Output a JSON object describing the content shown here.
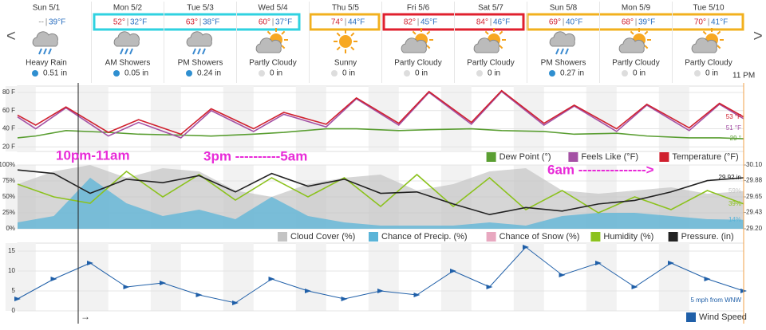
{
  "nav": {
    "prev": "<",
    "next": ">"
  },
  "forecast": {
    "days": [
      {
        "day": "Sun 5/1",
        "hi": "--",
        "lo": "39°F",
        "condition": "Heavy Rain",
        "precip": "0.51 in"
      },
      {
        "day": "Mon 5/2",
        "hi": "52°",
        "lo": "32°F",
        "condition": "AM Showers",
        "precip": "0.05 in"
      },
      {
        "day": "Tue 5/3",
        "hi": "63°",
        "lo": "38°F",
        "condition": "PM Showers",
        "precip": "0.24 in"
      },
      {
        "day": "Wed 5/4",
        "hi": "60°",
        "lo": "37°F",
        "condition": "Partly Cloudy",
        "precip": "0 in"
      },
      {
        "day": "Thu 5/5",
        "hi": "74°",
        "lo": "44°F",
        "condition": "Sunny",
        "precip": "0 in"
      },
      {
        "day": "Fri 5/6",
        "hi": "82°",
        "lo": "45°F",
        "condition": "Partly Cloudy",
        "precip": "0 in"
      },
      {
        "day": "Sat 5/7",
        "hi": "84°",
        "lo": "46°F",
        "condition": "Partly Cloudy",
        "precip": "0 in"
      },
      {
        "day": "Sun 5/8",
        "hi": "69°",
        "lo": "40°F",
        "condition": "PM Showers",
        "precip": "0.27 in"
      },
      {
        "day": "Mon 5/9",
        "hi": "68°",
        "lo": "39°F",
        "condition": "Partly Cloudy",
        "precip": "0 in"
      },
      {
        "day": "Tue 5/10",
        "hi": "70°",
        "lo": "41°F",
        "condition": "Partly Cloudy",
        "precip": "0 in"
      }
    ],
    "time_label": "11 PM",
    "now_arrow": "→",
    "annotations": [
      "10pm-11am",
      "3pm ----------5am",
      "6am --------------->"
    ]
  },
  "chart_data": [
    {
      "type": "line",
      "x": [
        0,
        6,
        16,
        30,
        40,
        54,
        64,
        78,
        88,
        102,
        112,
        126,
        136,
        150,
        160,
        174,
        184,
        198,
        208,
        222,
        232,
        240
      ],
      "ylim": [
        15,
        87
      ],
      "yticks": [
        {
          "value": 20,
          "label": "20 F"
        },
        {
          "value": 40,
          "label": "40 F"
        },
        {
          "value": 60,
          "label": "60 F"
        },
        {
          "value": 80,
          "label": "80 F"
        }
      ],
      "series": [
        {
          "name": "Dew Point (°)",
          "color": "#5a9e32",
          "end_label": "29 °",
          "values": [
            30,
            32,
            38,
            36,
            34,
            33,
            32,
            34,
            36,
            40,
            40,
            38,
            39,
            40,
            38,
            37,
            34,
            35,
            32,
            30,
            30,
            29
          ]
        },
        {
          "name": "Feels Like (°F)",
          "color": "#a450a4",
          "end_label": "51 °F",
          "values": [
            53,
            40,
            63,
            32,
            47,
            30,
            60,
            37,
            56,
            42,
            73,
            44,
            80,
            45,
            81,
            44,
            65,
            37,
            66,
            38,
            67,
            51
          ]
        },
        {
          "name": "Temperature (°F)",
          "color": "#d0202e",
          "end_label": "53 °F",
          "values": [
            55,
            44,
            64,
            36,
            50,
            34,
            62,
            40,
            58,
            45,
            74,
            46,
            81,
            47,
            82,
            46,
            66,
            40,
            67,
            41,
            68,
            53
          ]
        }
      ]
    },
    {
      "type": "line",
      "x": [
        0,
        12,
        24,
        36,
        48,
        60,
        72,
        84,
        96,
        108,
        120,
        132,
        144,
        156,
        168,
        180,
        192,
        204,
        216,
        228,
        240
      ],
      "ylim": [
        0,
        100
      ],
      "y2lim": [
        29.2,
        30.1
      ],
      "yticks": [
        {
          "value": 0,
          "label": "0%"
        },
        {
          "value": 25,
          "label": "25%"
        },
        {
          "value": 50,
          "label": "50%"
        },
        {
          "value": 75,
          "label": "75%"
        },
        {
          "value": 100,
          "label": "100%"
        }
      ],
      "y2ticks": [
        {
          "value": 29.2,
          "label": "29.20"
        },
        29.43,
        29.65,
        29.88,
        {
          "value": 30.1,
          "label": "30.10"
        }
      ],
      "legend_extra": {
        "name": "Chance of Snow (%)",
        "color": "#e8a8c0"
      },
      "series": [
        {
          "name": "Cloud Cover (%)",
          "color": "#c4c4c4",
          "style": "area",
          "end_label": "59%",
          "values": [
            70,
            90,
            100,
            80,
            95,
            90,
            60,
            50,
            70,
            80,
            85,
            60,
            70,
            90,
            95,
            60,
            55,
            60,
            65,
            55,
            59
          ]
        },
        {
          "name": "Chance of Precip. (%)",
          "color": "#5ab4d8",
          "style": "area",
          "end_label": "14%",
          "values": [
            10,
            20,
            80,
            40,
            20,
            30,
            15,
            50,
            20,
            10,
            5,
            5,
            5,
            10,
            5,
            20,
            25,
            25,
            20,
            15,
            14
          ]
        },
        {
          "name": "Humidity (%)",
          "color": "#8cc21e",
          "end_label": "39%",
          "values": [
            70,
            50,
            40,
            90,
            50,
            85,
            45,
            80,
            50,
            80,
            35,
            85,
            35,
            80,
            30,
            60,
            25,
            50,
            30,
            60,
            39
          ]
        },
        {
          "name": "Pressure. (in)",
          "color": "#222222",
          "axis": "y2",
          "end_label": "29.92 in",
          "values": [
            30.03,
            29.98,
            29.7,
            29.9,
            29.85,
            29.95,
            29.72,
            29.98,
            29.8,
            29.9,
            29.7,
            29.72,
            29.55,
            29.4,
            29.5,
            29.45,
            29.55,
            29.6,
            29.72,
            29.88,
            29.92
          ]
        }
      ]
    },
    {
      "type": "line",
      "x": [
        0,
        12,
        24,
        36,
        48,
        60,
        72,
        84,
        96,
        108,
        120,
        132,
        144,
        156,
        168,
        180,
        192,
        204,
        216,
        228,
        240
      ],
      "ylim": [
        0,
        17
      ],
      "yticks": [
        0,
        5,
        10,
        15
      ],
      "series": [
        {
          "name": "Wind Speed",
          "color": "#1f5fa8",
          "end_label": "5 mph from WNW",
          "values": [
            3,
            8,
            12,
            6,
            7,
            4,
            2,
            8,
            5,
            3,
            5,
            4,
            10,
            6,
            16,
            9,
            12,
            6,
            12,
            8,
            5
          ]
        }
      ]
    }
  ]
}
